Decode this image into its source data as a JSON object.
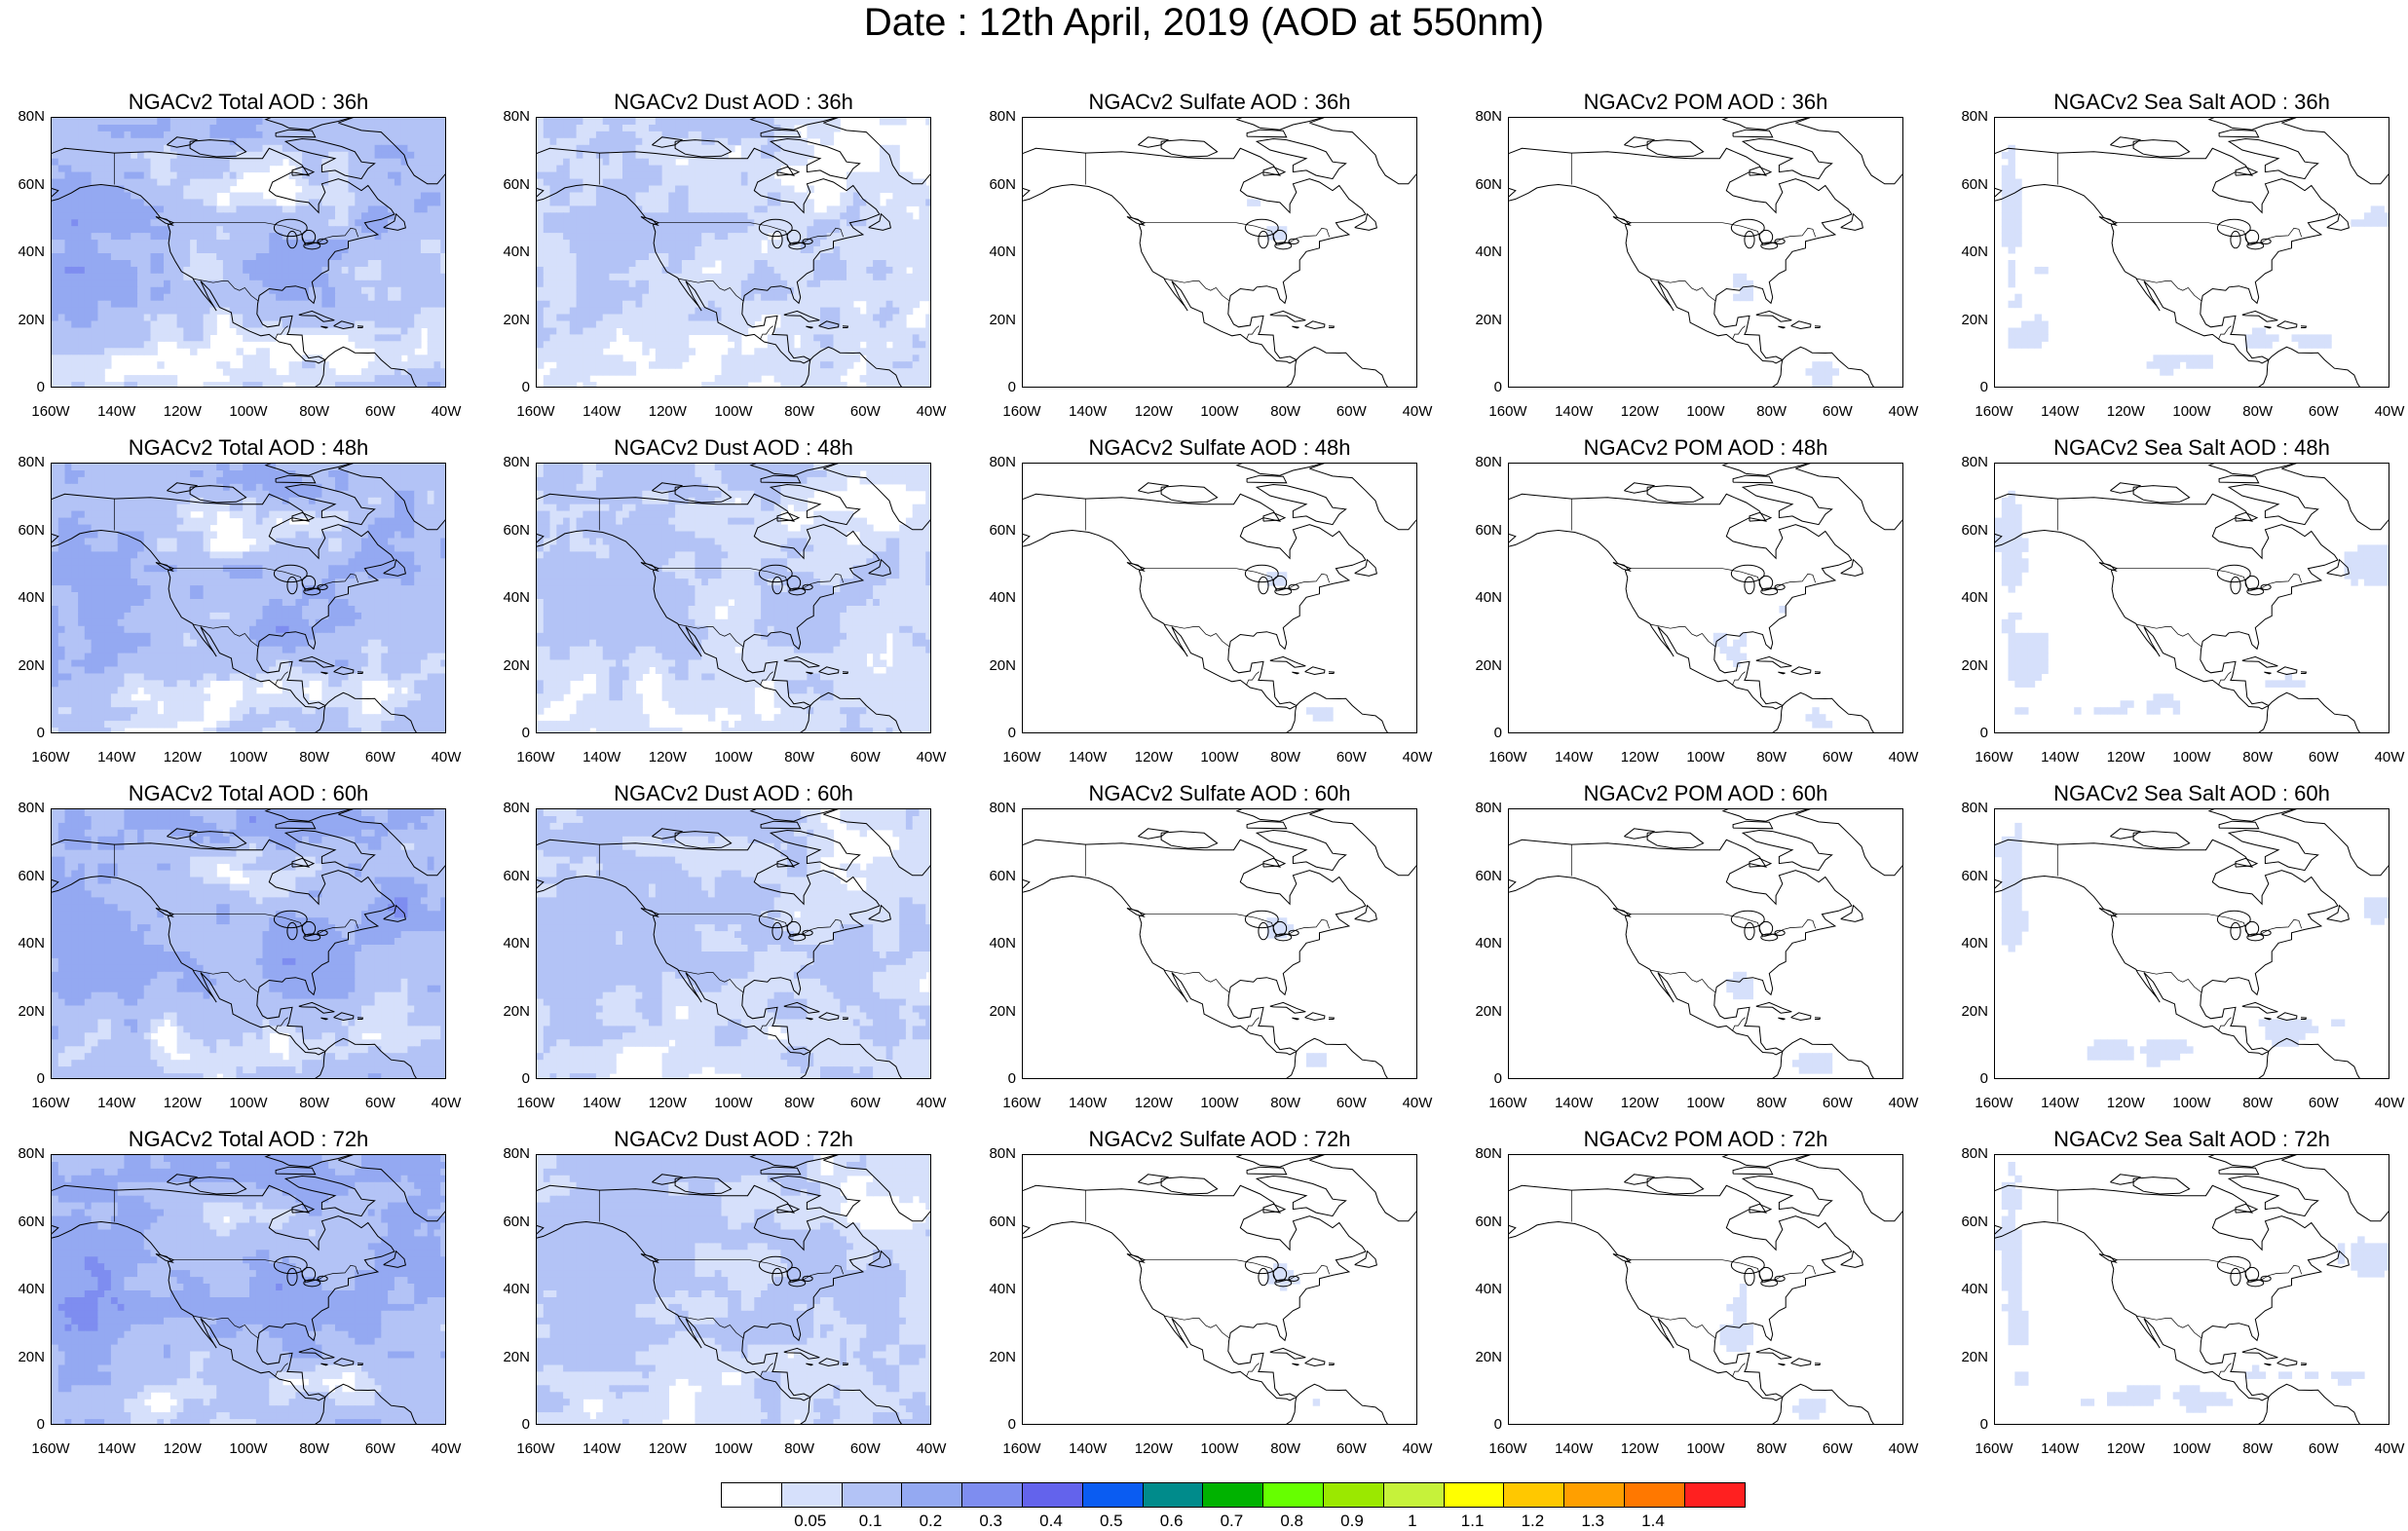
{
  "title": "Date : 12th April, 2019 (AOD at 550nm)",
  "panels": [
    {
      "title": "NGACv2 Total AOD : 36h",
      "species": "total",
      "hour": 36
    },
    {
      "title": "NGACv2 Dust AOD : 36h",
      "species": "dust",
      "hour": 36
    },
    {
      "title": "NGACv2 Sulfate AOD : 36h",
      "species": "sulfate",
      "hour": 36
    },
    {
      "title": "NGACv2 POM AOD : 36h",
      "species": "pom",
      "hour": 36
    },
    {
      "title": "NGACv2 Sea Salt AOD : 36h",
      "species": "seasalt",
      "hour": 36
    },
    {
      "title": "NGACv2 Total AOD : 48h",
      "species": "total",
      "hour": 48
    },
    {
      "title": "NGACv2 Dust AOD : 48h",
      "species": "dust",
      "hour": 48
    },
    {
      "title": "NGACv2 Sulfate AOD : 48h",
      "species": "sulfate",
      "hour": 48
    },
    {
      "title": "NGACv2 POM AOD : 48h",
      "species": "pom",
      "hour": 48
    },
    {
      "title": "NGACv2 Sea Salt AOD : 48h",
      "species": "seasalt",
      "hour": 48
    },
    {
      "title": "NGACv2 Total AOD : 60h",
      "species": "total",
      "hour": 60
    },
    {
      "title": "NGACv2 Dust AOD : 60h",
      "species": "dust",
      "hour": 60
    },
    {
      "title": "NGACv2 Sulfate AOD : 60h",
      "species": "sulfate",
      "hour": 60
    },
    {
      "title": "NGACv2 POM AOD : 60h",
      "species": "pom",
      "hour": 60
    },
    {
      "title": "NGACv2 Sea Salt AOD : 60h",
      "species": "seasalt",
      "hour": 60
    },
    {
      "title": "NGACv2 Total AOD : 72h",
      "species": "total",
      "hour": 72
    },
    {
      "title": "NGACv2 Dust AOD : 72h",
      "species": "dust",
      "hour": 72
    },
    {
      "title": "NGACv2 Sulfate AOD : 72h",
      "species": "sulfate",
      "hour": 72
    },
    {
      "title": "NGACv2 POM AOD : 72h",
      "species": "pom",
      "hour": 72
    },
    {
      "title": "NGACv2 Sea Salt  AOD : 72h",
      "species": "seasalt",
      "hour": 72
    }
  ],
  "y_ticks": [
    "80N",
    "60N",
    "40N",
    "20N",
    "0"
  ],
  "x_ticks": [
    "160W",
    "140W",
    "120W",
    "100W",
    "80W",
    "60W",
    "40W"
  ],
  "colorbar": {
    "colors": [
      "#ffffff",
      "#d6e0fb",
      "#b3c3f6",
      "#94a9f2",
      "#7e8df0",
      "#6363ec",
      "#0a5cf2",
      "#008b8b",
      "#00b200",
      "#66ff00",
      "#9be800",
      "#c6f23a",
      "#ffff00",
      "#ffc800",
      "#ff9f00",
      "#ff7800",
      "#ff2020"
    ],
    "labels": [
      "0.05",
      "0.1",
      "0.2",
      "0.3",
      "0.4",
      "0.5",
      "0.6",
      "0.7",
      "0.8",
      "0.9",
      "1",
      "1.1",
      "1.2",
      "1.3",
      "1.4"
    ]
  }
}
